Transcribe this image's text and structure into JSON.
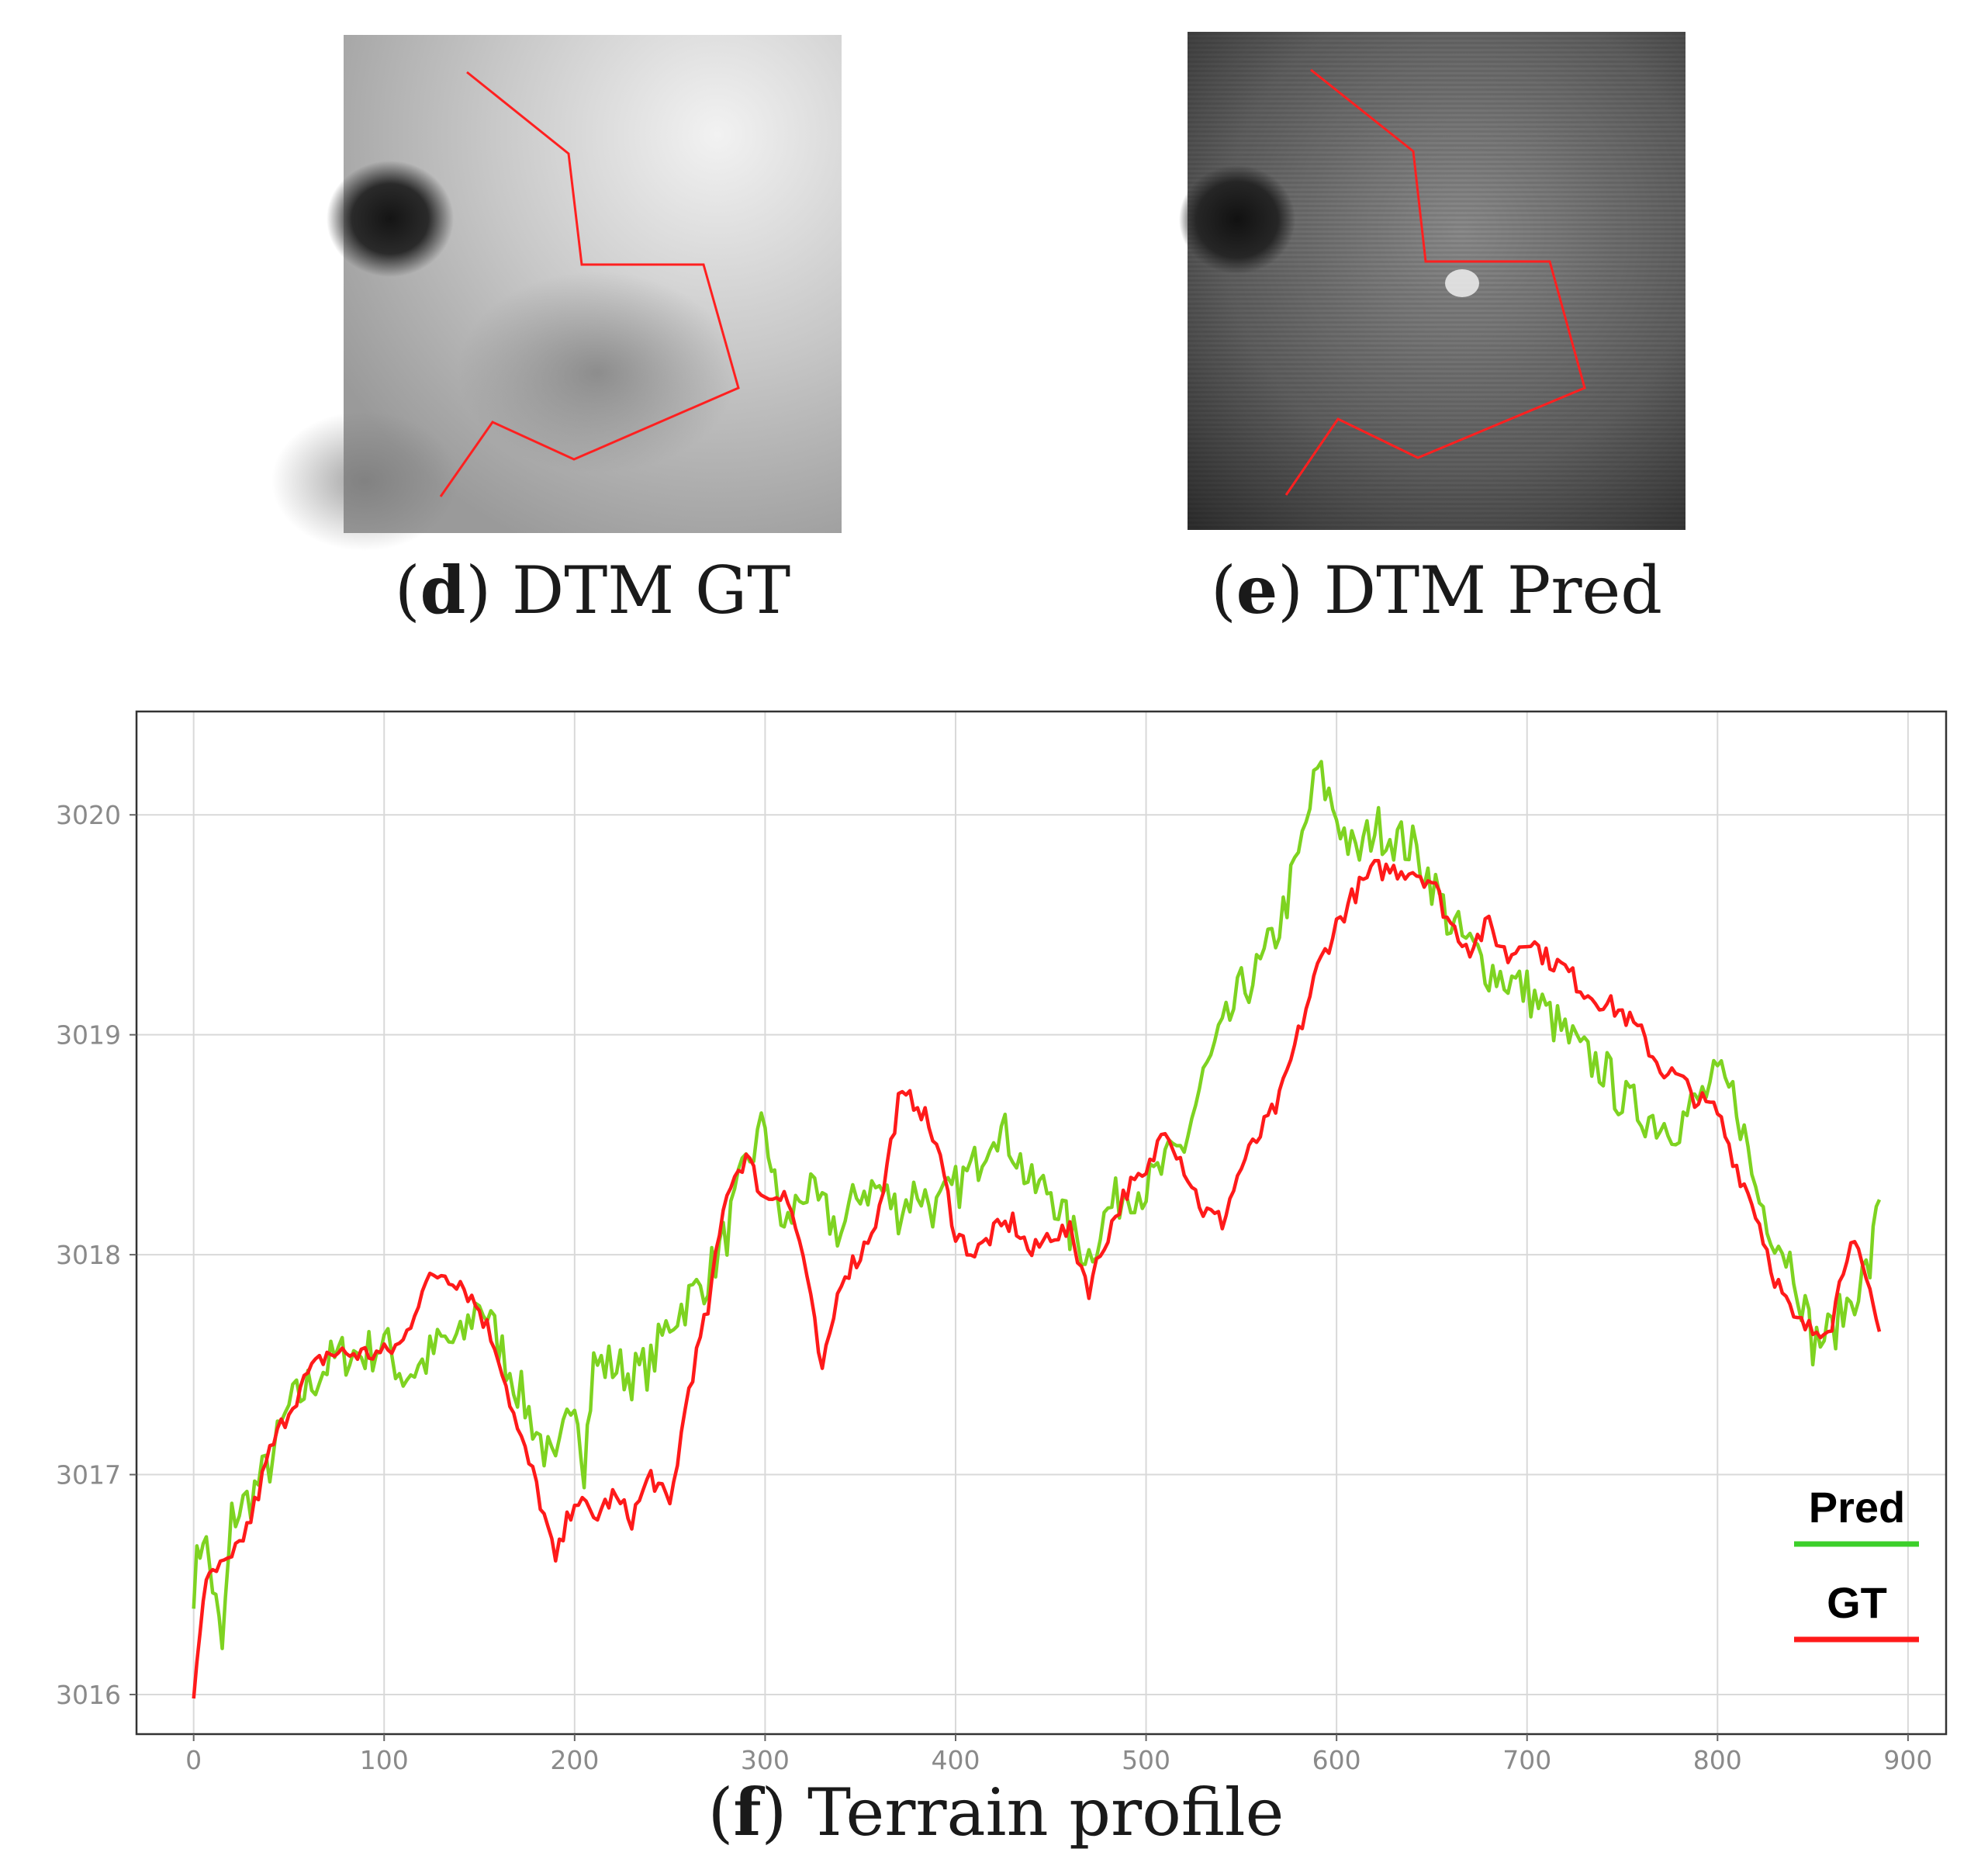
{
  "panels": [
    {
      "letter": "d",
      "label": " DTM GT",
      "open": "(",
      "close": ")"
    },
    {
      "letter": "e",
      "label": " DTM Pred",
      "open": "(",
      "close": ")"
    }
  ],
  "profile_caption": {
    "letter": "f",
    "label": " Terrain profile",
    "open": "(",
    "close": ")"
  },
  "colors": {
    "pred": "#7ed321",
    "gt": "#ff1a1a",
    "pred_legend": "#3ccf2a",
    "grid": "#d9d9d9",
    "axis": "#333333",
    "path_line": "#ff2020"
  },
  "chart_data": {
    "type": "line",
    "title": "Terrain profile",
    "xlabel": "",
    "ylabel": "",
    "xlim": [
      -30,
      920
    ],
    "ylim": [
      3015.82,
      3020.47
    ],
    "x_ticks": [
      0,
      100,
      200,
      300,
      400,
      500,
      600,
      700,
      800,
      900
    ],
    "y_ticks": [
      3016,
      3017,
      3018,
      3019,
      3020
    ],
    "legend": {
      "position": "bottom-right",
      "entries": [
        "Pred",
        "GT"
      ]
    },
    "series": [
      {
        "name": "Pred",
        "color": "#7ed321",
        "points": [
          [
            0,
            3016.5
          ],
          [
            5,
            3016.75
          ],
          [
            10,
            3016.5
          ],
          [
            15,
            3016.2
          ],
          [
            20,
            3016.8
          ],
          [
            30,
            3016.9
          ],
          [
            40,
            3017.05
          ],
          [
            50,
            3017.3
          ],
          [
            60,
            3017.4
          ],
          [
            70,
            3017.5
          ],
          [
            80,
            3017.55
          ],
          [
            90,
            3017.55
          ],
          [
            100,
            3017.6
          ],
          [
            110,
            3017.45
          ],
          [
            120,
            3017.5
          ],
          [
            130,
            3017.6
          ],
          [
            140,
            3017.6
          ],
          [
            150,
            3017.8
          ],
          [
            160,
            3017.6
          ],
          [
            170,
            3017.4
          ],
          [
            180,
            3017.2
          ],
          [
            190,
            3017.0
          ],
          [
            200,
            3017.4
          ],
          [
            205,
            3017.05
          ],
          [
            210,
            3017.5
          ],
          [
            220,
            3017.5
          ],
          [
            230,
            3017.45
          ],
          [
            240,
            3017.5
          ],
          [
            250,
            3017.7
          ],
          [
            260,
            3017.8
          ],
          [
            270,
            3017.9
          ],
          [
            280,
            3018.1
          ],
          [
            290,
            3018.4
          ],
          [
            300,
            3018.6
          ],
          [
            305,
            3018.3
          ],
          [
            310,
            3018.1
          ],
          [
            320,
            3018.3
          ],
          [
            330,
            3018.2
          ],
          [
            340,
            3018.1
          ],
          [
            350,
            3018.3
          ],
          [
            360,
            3018.3
          ],
          [
            370,
            3018.2
          ],
          [
            380,
            3018.3
          ],
          [
            390,
            3018.2
          ],
          [
            400,
            3018.3
          ],
          [
            410,
            3018.4
          ],
          [
            420,
            3018.6
          ],
          [
            430,
            3018.5
          ],
          [
            440,
            3018.3
          ],
          [
            450,
            3018.3
          ],
          [
            460,
            3018.1
          ],
          [
            470,
            3018.0
          ],
          [
            480,
            3018.2
          ],
          [
            490,
            3018.3
          ],
          [
            500,
            3018.3
          ],
          [
            510,
            3018.4
          ],
          [
            520,
            3018.5
          ],
          [
            530,
            3018.8
          ],
          [
            540,
            3019.0
          ],
          [
            550,
            3019.2
          ],
          [
            560,
            3019.3
          ],
          [
            570,
            3019.5
          ],
          [
            580,
            3019.8
          ],
          [
            590,
            3020.2
          ],
          [
            600,
            3020.0
          ],
          [
            610,
            3019.8
          ],
          [
            620,
            3019.95
          ],
          [
            630,
            3019.9
          ],
          [
            640,
            3019.85
          ],
          [
            650,
            3019.7
          ],
          [
            660,
            3019.5
          ],
          [
            670,
            3019.4
          ],
          [
            680,
            3019.3
          ],
          [
            690,
            3019.25
          ],
          [
            700,
            3019.2
          ],
          [
            710,
            3019.1
          ],
          [
            720,
            3019.0
          ],
          [
            730,
            3018.9
          ],
          [
            740,
            3018.85
          ],
          [
            750,
            3018.7
          ],
          [
            760,
            3018.65
          ],
          [
            770,
            3018.6
          ],
          [
            780,
            3018.6
          ],
          [
            790,
            3018.7
          ],
          [
            800,
            3018.8
          ],
          [
            810,
            3018.7
          ],
          [
            820,
            3018.3
          ],
          [
            830,
            3018.1
          ],
          [
            840,
            3017.95
          ],
          [
            850,
            3017.6
          ],
          [
            860,
            3017.65
          ],
          [
            870,
            3017.8
          ],
          [
            880,
            3017.95
          ],
          [
            885,
            3018.25
          ]
        ]
      },
      {
        "name": "GT",
        "color": "#ff1a1a",
        "points": [
          [
            0,
            3016.0
          ],
          [
            5,
            3016.45
          ],
          [
            10,
            3016.55
          ],
          [
            20,
            3016.6
          ],
          [
            30,
            3016.8
          ],
          [
            40,
            3017.1
          ],
          [
            50,
            3017.3
          ],
          [
            60,
            3017.45
          ],
          [
            70,
            3017.55
          ],
          [
            80,
            3017.55
          ],
          [
            90,
            3017.55
          ],
          [
            100,
            3017.55
          ],
          [
            110,
            3017.6
          ],
          [
            120,
            3017.85
          ],
          [
            130,
            3017.92
          ],
          [
            140,
            3017.88
          ],
          [
            150,
            3017.75
          ],
          [
            160,
            3017.55
          ],
          [
            170,
            3017.2
          ],
          [
            180,
            3016.95
          ],
          [
            190,
            3016.6
          ],
          [
            200,
            3016.9
          ],
          [
            210,
            3016.8
          ],
          [
            220,
            3016.9
          ],
          [
            230,
            3016.8
          ],
          [
            240,
            3017.0
          ],
          [
            250,
            3016.85
          ],
          [
            260,
            3017.4
          ],
          [
            270,
            3017.75
          ],
          [
            280,
            3018.3
          ],
          [
            290,
            3018.45
          ],
          [
            300,
            3018.25
          ],
          [
            310,
            3018.3
          ],
          [
            320,
            3018.0
          ],
          [
            330,
            3017.45
          ],
          [
            340,
            3017.9
          ],
          [
            350,
            3018.0
          ],
          [
            360,
            3018.2
          ],
          [
            370,
            3018.7
          ],
          [
            380,
            3018.7
          ],
          [
            390,
            3018.5
          ],
          [
            400,
            3018.1
          ],
          [
            410,
            3018.0
          ],
          [
            420,
            3018.1
          ],
          [
            430,
            3018.15
          ],
          [
            440,
            3018.0
          ],
          [
            450,
            3018.1
          ],
          [
            460,
            3018.1
          ],
          [
            470,
            3017.85
          ],
          [
            480,
            3018.1
          ],
          [
            490,
            3018.3
          ],
          [
            500,
            3018.35
          ],
          [
            510,
            3018.6
          ],
          [
            520,
            3018.4
          ],
          [
            530,
            3018.2
          ],
          [
            540,
            3018.15
          ],
          [
            550,
            3018.4
          ],
          [
            560,
            3018.55
          ],
          [
            570,
            3018.7
          ],
          [
            580,
            3019.0
          ],
          [
            590,
            3019.3
          ],
          [
            600,
            3019.5
          ],
          [
            610,
            3019.65
          ],
          [
            620,
            3019.75
          ],
          [
            630,
            3019.75
          ],
          [
            640,
            3019.75
          ],
          [
            650,
            3019.7
          ],
          [
            660,
            3019.5
          ],
          [
            670,
            3019.4
          ],
          [
            680,
            3019.5
          ],
          [
            690,
            3019.35
          ],
          [
            700,
            3019.45
          ],
          [
            710,
            3019.35
          ],
          [
            720,
            3019.3
          ],
          [
            730,
            3019.2
          ],
          [
            740,
            3019.15
          ],
          [
            750,
            3019.1
          ],
          [
            760,
            3019.0
          ],
          [
            770,
            3018.85
          ],
          [
            780,
            3018.8
          ],
          [
            790,
            3018.7
          ],
          [
            800,
            3018.65
          ],
          [
            810,
            3018.4
          ],
          [
            820,
            3018.2
          ],
          [
            830,
            3017.9
          ],
          [
            840,
            3017.7
          ],
          [
            850,
            3017.65
          ],
          [
            860,
            3017.7
          ],
          [
            870,
            3018.1
          ],
          [
            880,
            3017.8
          ],
          [
            885,
            3017.65
          ]
        ]
      }
    ]
  }
}
